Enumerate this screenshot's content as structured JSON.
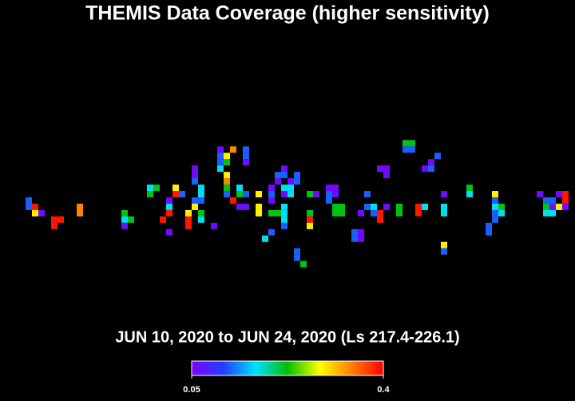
{
  "chart_data": {
    "type": "heatmap",
    "title": "THEMIS Data Coverage (higher sensitivity)",
    "subtitle": "JUN 10, 2020 to JUN 24, 2020 (Ls 217.4-226.1)",
    "xlim": [
      0,
      90
    ],
    "ylim": [
      0,
      63
    ],
    "colorscale": [
      "#7f00ff",
      "#2040ff",
      "#00e0ff",
      "#00c000",
      "#ffff00",
      "#ff8000",
      "#ff0000"
    ],
    "clim": [
      0.05,
      0.4
    ],
    "cticks": [
      {
        "value": 0.05,
        "label": "0.05"
      },
      {
        "value": 0.4,
        "label": "0.4"
      }
    ],
    "cells": [
      [
        4,
        31,
        0.12
      ],
      [
        4,
        32,
        0.12
      ],
      [
        5,
        32,
        0.39
      ],
      [
        5,
        33,
        0.29
      ],
      [
        6,
        33,
        0.06
      ],
      [
        8,
        34,
        0.39
      ],
      [
        8,
        35,
        0.39
      ],
      [
        9,
        34,
        0.39
      ],
      [
        12,
        32,
        0.34
      ],
      [
        12,
        33,
        0.34
      ],
      [
        19,
        33,
        0.22
      ],
      [
        19,
        34,
        0.17
      ],
      [
        20,
        34,
        0.22
      ],
      [
        19,
        35,
        0.06
      ],
      [
        23,
        29,
        0.17
      ],
      [
        24,
        29,
        0.22
      ],
      [
        23,
        30,
        0.22
      ],
      [
        26,
        31,
        0.06
      ],
      [
        26,
        32,
        0.17
      ],
      [
        26,
        33,
        0.39
      ],
      [
        25,
        34,
        0.39
      ],
      [
        26,
        36,
        0.06
      ],
      [
        27,
        29,
        0.29
      ],
      [
        27,
        30,
        0.39
      ],
      [
        28,
        30,
        0.12
      ],
      [
        29,
        33,
        0.29
      ],
      [
        29,
        34,
        0.39
      ],
      [
        29,
        35,
        0.39
      ],
      [
        30,
        26,
        0.06
      ],
      [
        30,
        27,
        0.06
      ],
      [
        30,
        28,
        0.12
      ],
      [
        30,
        31,
        0.12
      ],
      [
        30,
        32,
        0.29
      ],
      [
        31,
        29,
        0.17
      ],
      [
        31,
        30,
        0.17
      ],
      [
        31,
        31,
        0.12
      ],
      [
        31,
        33,
        0.22
      ],
      [
        31,
        34,
        0.17
      ],
      [
        33,
        35,
        0.06
      ],
      [
        34,
        23,
        0.06
      ],
      [
        34,
        24,
        0.12
      ],
      [
        34,
        25,
        0.12
      ],
      [
        34,
        26,
        0.17
      ],
      [
        35,
        24,
        0.29
      ],
      [
        35,
        25,
        0.22
      ],
      [
        35,
        27,
        0.29
      ],
      [
        35,
        28,
        0.34
      ],
      [
        35,
        29,
        0.22
      ],
      [
        35,
        30,
        0.12
      ],
      [
        36,
        23,
        0.34
      ],
      [
        36,
        31,
        0.39
      ],
      [
        37,
        29,
        0.17
      ],
      [
        37,
        30,
        0.22
      ],
      [
        37,
        32,
        0.06
      ],
      [
        38,
        23,
        0.12
      ],
      [
        38,
        24,
        0.12
      ],
      [
        38,
        25,
        0.06
      ],
      [
        38,
        32,
        0.06
      ],
      [
        38,
        30,
        0.12
      ],
      [
        40,
        30,
        0.29
      ],
      [
        40,
        32,
        0.29
      ],
      [
        40,
        33,
        0.29
      ],
      [
        42,
        29,
        0.06
      ],
      [
        42,
        30,
        0.12
      ],
      [
        42,
        31,
        0.06
      ],
      [
        42,
        33,
        0.22
      ],
      [
        41,
        37,
        0.17
      ],
      [
        42,
        36,
        0.12
      ],
      [
        43,
        33,
        0.22
      ],
      [
        43,
        28,
        0.06
      ],
      [
        43,
        27,
        0.12
      ],
      [
        44,
        26,
        0.06
      ],
      [
        44,
        27,
        0.12
      ],
      [
        44,
        29,
        0.17
      ],
      [
        44,
        30,
        0.06
      ],
      [
        44,
        32,
        0.17
      ],
      [
        44,
        33,
        0.17
      ],
      [
        44,
        34,
        0.17
      ],
      [
        44,
        35,
        0.12
      ],
      [
        45,
        28,
        0.06
      ],
      [
        45,
        29,
        0.17
      ],
      [
        45,
        30,
        0.17
      ],
      [
        46,
        27,
        0.12
      ],
      [
        46,
        28,
        0.12
      ],
      [
        46,
        39,
        0.12
      ],
      [
        46,
        40,
        0.12
      ],
      [
        47,
        41,
        0.22
      ],
      [
        48,
        30,
        0.22
      ],
      [
        48,
        33,
        0.22
      ],
      [
        48,
        34,
        0.39
      ],
      [
        48,
        35,
        0.29
      ],
      [
        49,
        30,
        0.06
      ],
      [
        51,
        29,
        0.06
      ],
      [
        51,
        30,
        0.12
      ],
      [
        51,
        31,
        0.12
      ],
      [
        52,
        30,
        0.06
      ],
      [
        52,
        29,
        0.06
      ],
      [
        52,
        32,
        0.22
      ],
      [
        52,
        33,
        0.22
      ],
      [
        53,
        33,
        0.22
      ],
      [
        53,
        32,
        0.22
      ],
      [
        55,
        36,
        0.12
      ],
      [
        55,
        37,
        0.12
      ],
      [
        56,
        36,
        0.06
      ],
      [
        56,
        37,
        0.06
      ],
      [
        57,
        30,
        0.12
      ],
      [
        57,
        32,
        0.12
      ],
      [
        56,
        33,
        0.06
      ],
      [
        58,
        32,
        0.17
      ],
      [
        58,
        33,
        0.12
      ],
      [
        59,
        33,
        0.39
      ],
      [
        59,
        26,
        0.06
      ],
      [
        60,
        26,
        0.06
      ],
      [
        60,
        27,
        0.06
      ],
      [
        59,
        34,
        0.39
      ],
      [
        60,
        32,
        0.06
      ],
      [
        62,
        32,
        0.22
      ],
      [
        62,
        33,
        0.22
      ],
      [
        63,
        22,
        0.22
      ],
      [
        64,
        22,
        0.22
      ],
      [
        63,
        23,
        0.12
      ],
      [
        64,
        23,
        0.12
      ],
      [
        65,
        32,
        0.39
      ],
      [
        65,
        33,
        0.39
      ],
      [
        66,
        26,
        0.06
      ],
      [
        66,
        32,
        0.17
      ],
      [
        67,
        25,
        0.06
      ],
      [
        67,
        26,
        0.12
      ],
      [
        68,
        24,
        0.12
      ],
      [
        69,
        30,
        0.06
      ],
      [
        69,
        32,
        0.17
      ],
      [
        69,
        33,
        0.17
      ],
      [
        69,
        38,
        0.29
      ],
      [
        69,
        39,
        0.12
      ],
      [
        73,
        29,
        0.22
      ],
      [
        73,
        30,
        0.17
      ],
      [
        76,
        35,
        0.12
      ],
      [
        76,
        36,
        0.12
      ],
      [
        77,
        30,
        0.29
      ],
      [
        77,
        31,
        0.12
      ],
      [
        77,
        32,
        0.17
      ],
      [
        77,
        33,
        0.12
      ],
      [
        77,
        34,
        0.12
      ],
      [
        78,
        32,
        0.22
      ],
      [
        78,
        33,
        0.17
      ],
      [
        84,
        30,
        0.06
      ],
      [
        85,
        31,
        0.12
      ],
      [
        85,
        32,
        0.22
      ],
      [
        85,
        33,
        0.17
      ],
      [
        86,
        31,
        0.12
      ],
      [
        86,
        32,
        0.06
      ],
      [
        86,
        33,
        0.17
      ],
      [
        87,
        32,
        0.29
      ],
      [
        87,
        30,
        0.06
      ],
      [
        88,
        30,
        0.39
      ],
      [
        88,
        31,
        0.39
      ],
      [
        88,
        32,
        0.06
      ]
    ]
  }
}
